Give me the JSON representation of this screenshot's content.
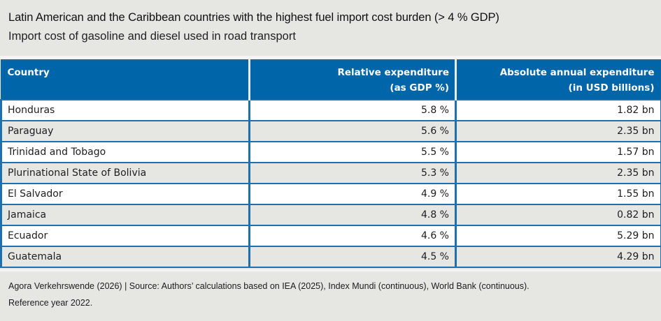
{
  "title": "Latin American and the Caribbean countries with the highest fuel import cost burden (> 4 % GDP)",
  "subtitle": "Import cost of gasoline and diesel used in road transport",
  "colors": {
    "header_blue": "#0066a9",
    "border_blue": "#1d6fb0",
    "background_grey": "#e6e6e3",
    "row_white": "#ffffff"
  },
  "chart_data": {
    "type": "table",
    "title": "Latin American and the Caribbean countries with the highest fuel import cost burden (> 4 % GDP)",
    "subtitle": "Import cost of gasoline and diesel used in road transport",
    "columns": [
      {
        "line1": "Country",
        "line2": ""
      },
      {
        "line1": "Relative expenditure",
        "line2": "(as GDP %)"
      },
      {
        "line1": "Absolute annual expenditure",
        "line2": "(in USD billions)"
      }
    ],
    "rows": [
      {
        "country": "Honduras",
        "relative": "5.8 %",
        "absolute": "1.82 bn"
      },
      {
        "country": "Paraguay",
        "relative": "5.6 %",
        "absolute": "2.35 bn"
      },
      {
        "country": "Trinidad and Tobago",
        "relative": "5.5 %",
        "absolute": "1.57 bn"
      },
      {
        "country": "Plurinational State of Bolivia",
        "relative": "5.3 %",
        "absolute": "2.35 bn"
      },
      {
        "country": "El Salvador",
        "relative": "4.9 %",
        "absolute": "1.55 bn"
      },
      {
        "country": "Jamaica",
        "relative": "4.8 %",
        "absolute": "0.82 bn"
      },
      {
        "country": "Ecuador",
        "relative": "4.6 %",
        "absolute": "5.29 bn"
      },
      {
        "country": "Guatemala",
        "relative": "4.5 %",
        "absolute": "4.29 bn"
      }
    ],
    "values_relative_pct": [
      5.8,
      5.6,
      5.5,
      5.3,
      4.9,
      4.8,
      4.6,
      4.5
    ],
    "values_absolute_usd_bn": [
      1.82,
      2.35,
      1.57,
      2.35,
      1.55,
      0.82,
      5.29,
      4.29
    ]
  },
  "footer": {
    "line1": "Agora Verkehrswende (2026) | Source: Authors’ calculations based on IEA (2025), Index Mundi (continuous), World Bank (continuous).",
    "line2": "Reference year 2022."
  }
}
